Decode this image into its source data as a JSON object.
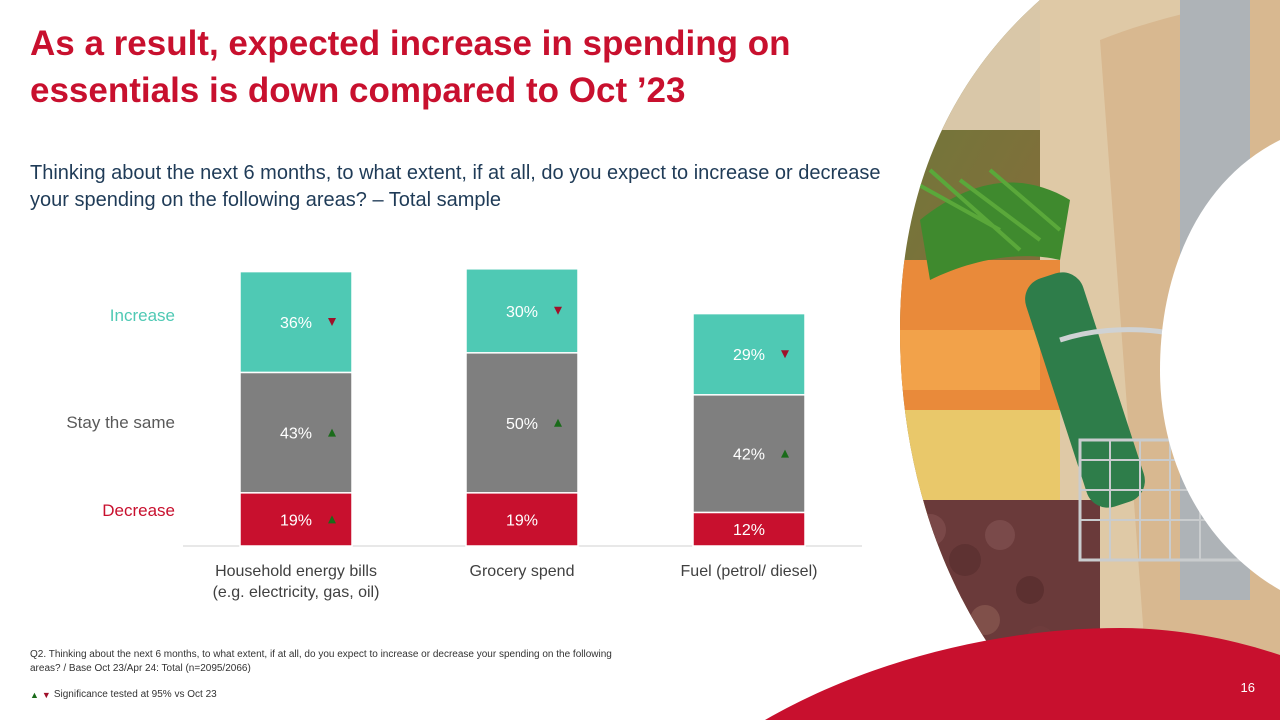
{
  "slide": {
    "title": "As a result, expected increase in spending on essentials is down compared to Oct ’23",
    "subtitle": "Thinking about the next 6 months, to what extent, if at all, do you expect to increase or decrease your spending on the following areas? – Total sample",
    "footnote": "Q2. Thinking about the next 6 months, to what extent, if at all, do you expect to increase or decrease your spending on the following areas? / Base Oct 23/Apr 24: Total (n=2095/2066)",
    "significance_note": "Significance tested at 95% vs Oct 23",
    "page_number": "16"
  },
  "colors": {
    "brand_red": "#c8102e",
    "increase": "#4fc9b4",
    "stay": "#7f7f7f",
    "decrease": "#c8102e",
    "sig_up": "#1a6b1a",
    "sig_down": "#a0102a"
  },
  "chart_data": {
    "type": "bar",
    "stacked": true,
    "categories": [
      "Household energy bills\n(e.g. electricity, gas, oil)",
      "Grocery spend",
      "Fuel (petrol/ diesel)"
    ],
    "series": [
      {
        "name": "Decrease",
        "values": [
          19,
          19,
          12
        ],
        "labels": [
          "19%",
          "19%",
          "12%"
        ],
        "significance": [
          "up",
          "",
          ""
        ]
      },
      {
        "name": "Stay the same",
        "values": [
          43,
          50,
          42
        ],
        "labels": [
          "43%",
          "50%",
          "42%"
        ],
        "significance": [
          "up",
          "up",
          "up"
        ]
      },
      {
        "name": "Increase",
        "values": [
          36,
          30,
          29
        ],
        "labels": [
          "36%",
          "30%",
          "29%"
        ],
        "significance": [
          "down",
          "down",
          "down"
        ]
      }
    ],
    "legend": "left"
  }
}
